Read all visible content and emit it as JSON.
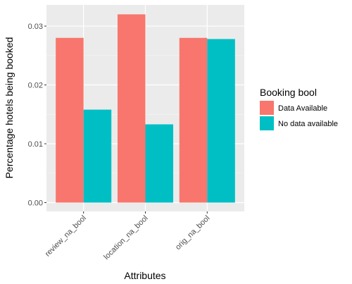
{
  "chart_data": {
    "type": "bar",
    "categories": [
      "review_na_bool",
      "location_na_bool",
      "orig_na_bool"
    ],
    "series": [
      {
        "name": "Data Available",
        "values": [
          0.028,
          0.032,
          0.028
        ],
        "color": "#f8766d"
      },
      {
        "name": "No data available",
        "values": [
          0.0158,
          0.0133,
          0.0278
        ],
        "color": "#00bfc4"
      }
    ],
    "xlabel": "Attributes",
    "ylabel": "Percentage hotels being booked",
    "ylim": [
      -0.0015,
      0.0336
    ],
    "yticks": [
      "0.00",
      "0.01",
      "0.02",
      "0.03"
    ],
    "ytick_values": [
      0,
      0.01,
      0.02,
      0.03
    ],
    "legend_title": "Booking bool",
    "legend_position": "right",
    "grid": true,
    "panel_background": "#ebebeb"
  }
}
